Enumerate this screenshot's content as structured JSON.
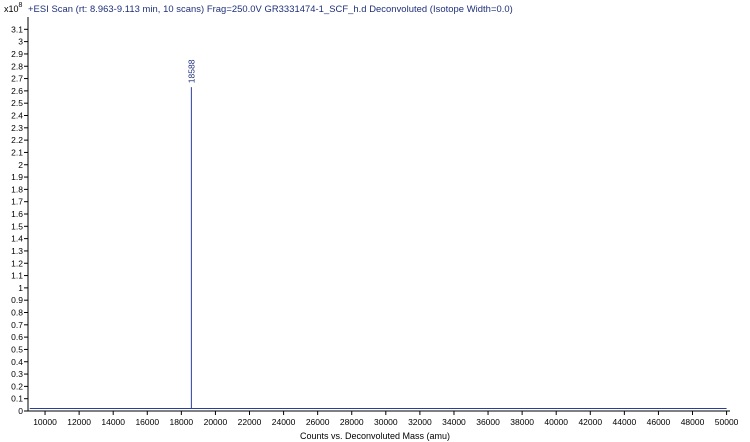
{
  "chart_data": {
    "type": "spectrum",
    "title": "+ESI Scan (rt: 8.963-9.113 min, 10 scans) Frag=250.0V GR3331474-1_SCF_h.d  Deconvoluted (Isotope Width=0.0)",
    "y_multiplier_base": "x10",
    "y_multiplier_exp": "8",
    "xlabel": "Counts vs. Deconvoluted Mass (amu)",
    "ylabel": "",
    "xlim": [
      9000,
      50200
    ],
    "ylim": [
      0,
      3.2
    ],
    "x_ticks": [
      10000,
      12000,
      14000,
      16000,
      18000,
      20000,
      22000,
      24000,
      26000,
      28000,
      30000,
      32000,
      34000,
      36000,
      38000,
      40000,
      42000,
      44000,
      46000,
      48000,
      50000
    ],
    "y_ticks": [
      0,
      0.1,
      0.2,
      0.3,
      0.4,
      0.5,
      0.6,
      0.7,
      0.8,
      0.9,
      1,
      1.1,
      1.2,
      1.3,
      1.4,
      1.5,
      1.6,
      1.7,
      1.8,
      1.9,
      2,
      2.1,
      2.2,
      2.3,
      2.4,
      2.5,
      2.6,
      2.7,
      2.8,
      2.9,
      3,
      3.1
    ],
    "peaks": [
      {
        "x": 18588,
        "y": 2.63,
        "label": "18588"
      }
    ],
    "grid": false,
    "colors": {
      "trace": "#2a3f9a",
      "title": "#1e2f7a",
      "peak_label": "#1e2f7a",
      "axis": "#000000"
    }
  }
}
